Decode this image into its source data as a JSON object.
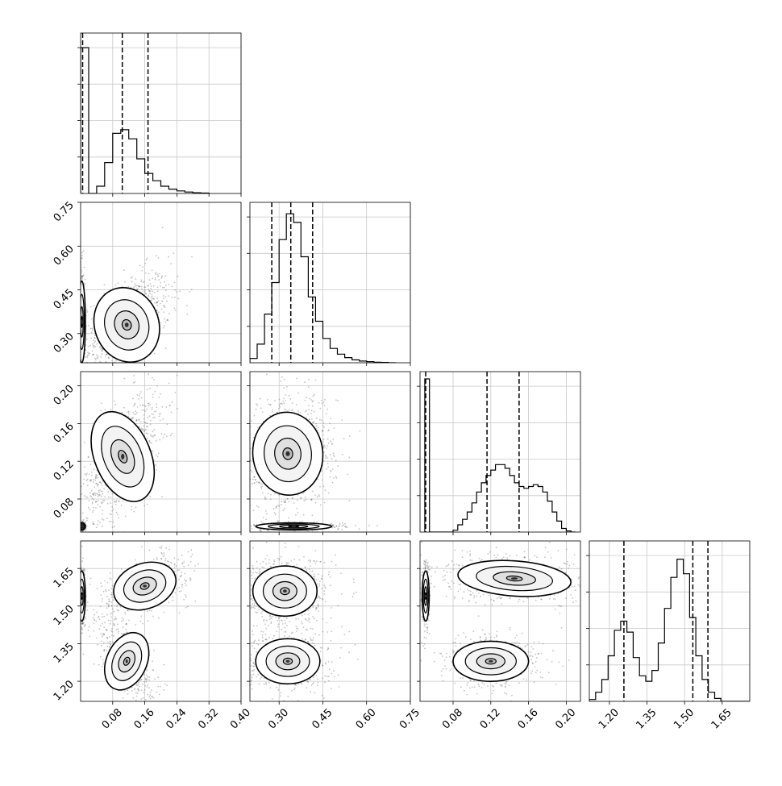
{
  "chart_data": {
    "type": "corner",
    "dimensions": 4,
    "quantile_color": "#000000",
    "contour_color": "#000000",
    "scatter_color": "#555555",
    "grid": true,
    "axes": [
      {
        "range": [
          0.0,
          0.4
        ],
        "ticks": [
          0.08,
          0.16,
          0.24,
          0.32,
          0.4
        ],
        "tick_labels": [
          "0.08",
          "0.16",
          "0.24",
          "0.32",
          "0.40"
        ]
      },
      {
        "range": [
          0.2,
          0.75
        ],
        "ticks": [
          0.3,
          0.45,
          0.6,
          0.75
        ],
        "tick_labels": [
          "0.30",
          "0.45",
          "0.60",
          "0.75"
        ]
      },
      {
        "range": [
          0.045,
          0.215
        ],
        "ticks": [
          0.08,
          0.12,
          0.16,
          0.2
        ],
        "tick_labels": [
          "0.08",
          "0.12",
          "0.16",
          "0.20"
        ]
      },
      {
        "range": [
          1.12,
          1.76
        ],
        "ticks": [
          1.2,
          1.35,
          1.5,
          1.65
        ],
        "tick_labels": [
          "1.20",
          "1.35",
          "1.50",
          "1.65"
        ]
      }
    ],
    "histograms": [
      {
        "dim": 0,
        "bin_edges": [
          0.0,
          0.02,
          0.04,
          0.06,
          0.08,
          0.1,
          0.12,
          0.14,
          0.16,
          0.18,
          0.2,
          0.22,
          0.24,
          0.26,
          0.28,
          0.3,
          0.32
        ],
        "counts": [
          4.0,
          0.0,
          0.2,
          0.85,
          1.65,
          1.75,
          1.5,
          0.95,
          0.55,
          0.35,
          0.2,
          0.12,
          0.07,
          0.04,
          0.02,
          0.01
        ],
        "ymax": 4.4,
        "quantiles": [
          0.005,
          0.104,
          0.168
        ]
      },
      {
        "dim": 1,
        "bin_edges": [
          0.2,
          0.225,
          0.25,
          0.275,
          0.3,
          0.325,
          0.35,
          0.375,
          0.4,
          0.425,
          0.45,
          0.475,
          0.5,
          0.525,
          0.55,
          0.575,
          0.6,
          0.625,
          0.65,
          0.675,
          0.7
        ],
        "counts": [
          0.15,
          0.65,
          1.7,
          2.8,
          4.3,
          5.2,
          4.9,
          3.7,
          2.3,
          1.45,
          0.85,
          0.5,
          0.3,
          0.18,
          0.1,
          0.06,
          0.04,
          0.02,
          0.01,
          0.0
        ],
        "ymax": 5.6,
        "quantiles": [
          0.275,
          0.34,
          0.415
        ]
      },
      {
        "dim": 2,
        "bin_edges": [
          0.05,
          0.055,
          0.06,
          0.065,
          0.07,
          0.075,
          0.08,
          0.085,
          0.09,
          0.095,
          0.1,
          0.105,
          0.11,
          0.115,
          0.12,
          0.125,
          0.13,
          0.135,
          0.14,
          0.145,
          0.15,
          0.155,
          0.16,
          0.165,
          0.17,
          0.175,
          0.18,
          0.185,
          0.19,
          0.195,
          0.2,
          0.205,
          0.21
        ],
        "counts": [
          4.2,
          0.0,
          0.0,
          0.0,
          0.0,
          0.0,
          0.05,
          0.2,
          0.35,
          0.55,
          0.8,
          1.1,
          1.35,
          1.55,
          1.7,
          1.85,
          1.85,
          1.75,
          1.55,
          1.35,
          1.25,
          1.2,
          1.25,
          1.3,
          1.25,
          1.1,
          0.85,
          0.55,
          0.3,
          0.1,
          0.03,
          0.0
        ],
        "ymax": 4.4,
        "quantiles": [
          0.051,
          0.116,
          0.15
        ]
      },
      {
        "dim": 3,
        "bin_edges": [
          1.12,
          1.145,
          1.17,
          1.195,
          1.22,
          1.245,
          1.27,
          1.295,
          1.32,
          1.345,
          1.37,
          1.395,
          1.42,
          1.445,
          1.47,
          1.495,
          1.52,
          1.545,
          1.57,
          1.595,
          1.62,
          1.645,
          1.67,
          1.695,
          1.72,
          1.745,
          1.77
        ],
        "counts": [
          0.05,
          0.25,
          0.6,
          1.25,
          1.95,
          2.2,
          1.9,
          1.2,
          0.7,
          0.55,
          0.85,
          1.6,
          2.55,
          3.4,
          3.9,
          3.5,
          2.3,
          1.25,
          0.6,
          0.25,
          0.08,
          0.0,
          0.0,
          0.0,
          0.0,
          0.0
        ],
        "ymax": 4.4,
        "quantiles": [
          1.258,
          1.533,
          1.593
        ]
      }
    ],
    "joints": [
      {
        "x_dim": 0,
        "y_dim": 1,
        "clusters": [
          {
            "cx": 0.115,
            "cy": 0.33,
            "sx": 0.04,
            "sy": 0.065,
            "rho": 0.5,
            "w": 1.0
          },
          {
            "cx": 0.003,
            "cy": 0.34,
            "sx": 0.003,
            "sy": 0.07,
            "rho": 0.0,
            "w": 0.5
          }
        ]
      },
      {
        "x_dim": 0,
        "y_dim": 2,
        "clusters": [
          {
            "cx": 0.105,
            "cy": 0.125,
            "sx": 0.035,
            "sy": 0.025,
            "rho": 0.55,
            "w": 1.0
          },
          {
            "cx": 0.003,
            "cy": 0.051,
            "sx": 0.003,
            "sy": 0.0015,
            "rho": 0.0,
            "w": 0.5
          }
        ]
      },
      {
        "x_dim": 1,
        "y_dim": 2,
        "clusters": [
          {
            "cx": 0.33,
            "cy": 0.128,
            "sx": 0.06,
            "sy": 0.022,
            "rho": 0.15,
            "w": 1.0
          },
          {
            "cx": 0.35,
            "cy": 0.051,
            "sx": 0.065,
            "sy": 0.0015,
            "rho": 0.0,
            "w": 0.5
          }
        ]
      },
      {
        "x_dim": 0,
        "y_dim": 3,
        "clusters": [
          {
            "cx": 0.16,
            "cy": 1.58,
            "sx": 0.04,
            "sy": 0.045,
            "rho": 0.5,
            "w": 1.0
          },
          {
            "cx": 0.115,
            "cy": 1.28,
            "sx": 0.025,
            "sy": 0.06,
            "rho": -0.6,
            "w": 0.8
          },
          {
            "cx": 0.003,
            "cy": 1.54,
            "sx": 0.003,
            "sy": 0.05,
            "rho": 0.0,
            "w": 0.5
          }
        ]
      },
      {
        "x_dim": 1,
        "y_dim": 3,
        "clusters": [
          {
            "cx": 0.32,
            "cy": 1.56,
            "sx": 0.055,
            "sy": 0.05,
            "rho": 0.0,
            "w": 1.0
          },
          {
            "cx": 0.33,
            "cy": 1.28,
            "sx": 0.055,
            "sy": 0.045,
            "rho": 0.0,
            "w": 0.7
          }
        ]
      },
      {
        "x_dim": 2,
        "y_dim": 3,
        "clusters": [
          {
            "cx": 0.145,
            "cy": 1.61,
            "sx": 0.03,
            "sy": 0.035,
            "rho": -0.1,
            "w": 1.0
          },
          {
            "cx": 0.12,
            "cy": 1.28,
            "sx": 0.02,
            "sy": 0.04,
            "rho": 0.0,
            "w": 0.8
          },
          {
            "cx": 0.051,
            "cy": 1.54,
            "sx": 0.0015,
            "sy": 0.05,
            "rho": 0.0,
            "w": 0.5
          }
        ]
      }
    ]
  }
}
